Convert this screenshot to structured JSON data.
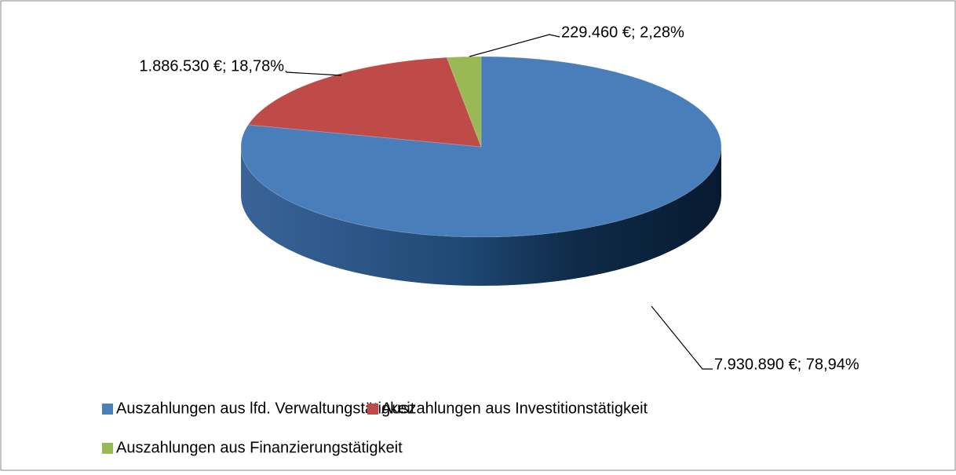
{
  "chart_data": {
    "type": "pie",
    "categories": [
      "Auszahlungen aus lfd. Verwaltungstätigkeit",
      "Auszahlungen aus Investitionstätigkeit",
      "Auszahlungen aus Finanzierungstätigkeit"
    ],
    "values": [
      7930890,
      1886530,
      229460
    ],
    "value_labels": [
      "7.930.890 €; 78,94%",
      "1.886.530 €; 18,78%",
      "229.460 €; 2,28%"
    ],
    "colors": [
      "#4a7ebb",
      "#be4b48",
      "#98b954"
    ],
    "legend": "bottom"
  }
}
